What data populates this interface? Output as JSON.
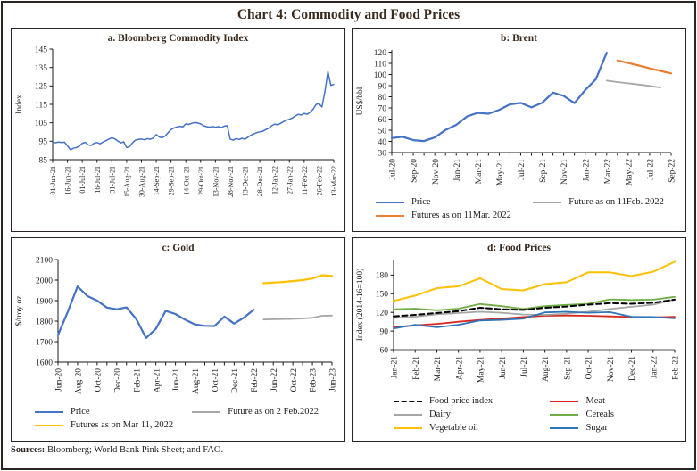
{
  "figure": {
    "title": "Chart 4: Commodity and Food Prices",
    "sources_label": "Sources:",
    "sources_text": " Bloomberg; World Bank Pink Sheet; and FAO."
  },
  "colors": {
    "price_blue": "#4472C4",
    "futures_orange": "#ED7D31",
    "futures_gray": "#A6A6A6",
    "futures_gold": "#FFC000",
    "cereals_green": "#70AD47",
    "meat_red": "#D7281F",
    "sugar_blue": "#2E75B6",
    "dashed_black": "#000000",
    "title_brown": "#3A2A1D"
  },
  "chart_data": [
    {
      "type": "line",
      "title": "a.  Bloomberg Commodity Index",
      "ylabel": "Index",
      "ylim": [
        85,
        145
      ],
      "yticks": [
        85,
        95,
        105,
        115,
        125,
        135,
        145
      ],
      "n": 96,
      "x_ticks": {
        "indices": [
          0,
          5,
          10,
          15,
          20,
          25,
          30,
          35,
          40,
          45,
          50,
          55,
          60,
          65,
          70,
          75,
          80,
          85,
          90,
          95
        ],
        "labels": [
          "01-Jun-21",
          "16-Jun-21",
          "01-Jul-21",
          "16-Jul-21",
          "31-Jul-21",
          "15-Aug-21",
          "30-Aug-21",
          "14-Sep-21",
          "29-Sep-21",
          "14-Oct-21",
          "29-Oct-21",
          "13-Nov-21",
          "28-Nov-21",
          "13-Dec-21",
          "28-Dec-21",
          "12-Jan-22",
          "27-Jan-22",
          "11-Feb-22",
          "26-Feb-22",
          "13-Mar-22"
        ]
      },
      "series": [
        {
          "color": "#4472C4",
          "width": 1.5,
          "start": 0,
          "values": [
            94.5,
            94.2,
            94.6,
            94.3,
            94.5,
            92.5,
            90.4,
            91.2,
            91.6,
            92.3,
            93.9,
            94.4,
            93.1,
            92.7,
            93.9,
            94.3,
            93.6,
            94.6,
            95.3,
            96.2,
            96.9,
            96.3,
            95.2,
            94.1,
            94.7,
            91.6,
            92.1,
            94.2,
            95.6,
            96.1,
            96.2,
            95.8,
            96.4,
            96.1,
            96.7,
            98.6,
            97.3,
            96.9,
            97.8,
            99.6,
            101.3,
            102.2,
            102.7,
            103.1,
            102.8,
            104.4,
            104.1,
            104.7,
            105.2,
            104.9,
            104.4,
            103.4,
            102.9,
            102.6,
            103.0,
            102.6,
            102.9,
            102.4,
            103.2,
            103.4,
            96.2,
            95.6,
            96.4,
            96.0,
            96.6,
            96.1,
            97.2,
            98.3,
            99.0,
            99.7,
            100.1,
            100.4,
            101.3,
            102.1,
            103.4,
            104.3,
            103.9,
            104.7,
            105.6,
            106.4,
            106.9,
            107.6,
            108.7,
            109.6,
            109.2,
            110.1,
            109.6,
            110.8,
            112.3,
            114.9,
            115.4,
            113.6,
            122.0,
            132.8,
            125.3,
            125.8
          ]
        }
      ]
    },
    {
      "type": "line",
      "title": "b: Brent",
      "ylabel": "US$/bbl",
      "ylim": [
        30,
        122
      ],
      "yticks": [
        30,
        40,
        50,
        60,
        70,
        80,
        90,
        100,
        110,
        120
      ],
      "n": 27,
      "x_ticks": {
        "indices": [
          0,
          2,
          4,
          6,
          8,
          10,
          12,
          14,
          16,
          18,
          20,
          22,
          24,
          26
        ],
        "labels": [
          "Jul-20",
          "Sep-20",
          "Nov-20",
          "Jan-21",
          "Mar-21",
          "May-21",
          "Jul-21",
          "Sep-21",
          "Nov-21",
          "Jan-22",
          "Mar-22",
          "May-22",
          "Jul-22",
          "Sep-22"
        ]
      },
      "series": [
        {
          "label": "Price",
          "color": "#4472C4",
          "width": 2.2,
          "start": 0,
          "values": [
            43.0,
            44.2,
            41.1,
            40.3,
            43.5,
            50.2,
            54.8,
            62.3,
            65.6,
            64.8,
            68.3,
            73.2,
            74.5,
            70.5,
            74.6,
            83.8,
            80.8,
            74.3,
            86.0,
            95.8,
            119.5
          ]
        },
        {
          "label": "Future as on 11Feb. 2022",
          "color": "#A6A6A6",
          "width": 1.8,
          "start": 20,
          "values": [
            94.5,
            93.2,
            92.1,
            91.0,
            89.8,
            88.3
          ]
        },
        {
          "label": "Futures as on 11Mar. 2022",
          "color": "#ED7D31",
          "width": 2.2,
          "start": 21,
          "values": [
            112.6,
            110.3,
            108.0,
            105.5,
            103.2,
            101.0
          ]
        }
      ]
    },
    {
      "type": "line",
      "title": "c: Gold",
      "ylabel": "$/troy oz",
      "ylim": [
        1600,
        2100
      ],
      "yticks": [
        1600,
        1700,
        1800,
        1900,
        2000,
        2100
      ],
      "n": 29,
      "x_ticks": {
        "indices": [
          0,
          2,
          4,
          6,
          8,
          10,
          12,
          14,
          16,
          18,
          20,
          22,
          24,
          26,
          28
        ],
        "labels": [
          "Jun-20",
          "Aug-20",
          "Oct-20",
          "Dec-20",
          "Feb-21",
          "Apr-21",
          "Jun-21",
          "Aug-21",
          "Oct-21",
          "Dec-21",
          "Feb-22",
          "Jun-22",
          "Oct-22",
          "Feb-23",
          "Jun-23"
        ]
      },
      "series": [
        {
          "label": "Price",
          "color": "#4472C4",
          "width": 2.2,
          "start": 0,
          "values": [
            1732,
            1846,
            1969,
            1922,
            1900,
            1866,
            1858,
            1867,
            1810,
            1718,
            1762,
            1850,
            1835,
            1807,
            1784,
            1777,
            1776,
            1822,
            1788,
            1817,
            1856
          ]
        },
        {
          "label": "Future as on 2 Feb.2022",
          "color": "#A6A6A6",
          "width": 1.8,
          "start": 21,
          "values": [
            1808,
            1809,
            1810,
            1811,
            1813,
            1816,
            1826,
            1827
          ]
        },
        {
          "label": "Futures as on Mar 11, 2022",
          "color": "#FFC000",
          "width": 2.2,
          "start": 21,
          "values": [
            1985,
            1988,
            1991,
            1995,
            2000,
            2008,
            2024,
            2020
          ]
        }
      ]
    },
    {
      "type": "line",
      "title": "d: Food Prices",
      "ylabel": "Index (2014-16=100)",
      "ylim": [
        60,
        205
      ],
      "yticks": [
        60,
        90,
        120,
        150,
        180
      ],
      "n": 14,
      "x_ticks": {
        "indices": [
          0,
          1,
          2,
          3,
          4,
          5,
          6,
          7,
          8,
          9,
          10,
          11,
          12,
          13
        ],
        "labels": [
          "Jan-21",
          "Feb-21",
          "Mar-21",
          "Apr-21",
          "May-21",
          "Jun-21",
          "Jul-21",
          "Aug-21",
          "Sep-21",
          "Oct-21",
          "Nov-21",
          "Dec-21",
          "Jan-22",
          "Feb-22"
        ]
      },
      "series": [
        {
          "label": "Food price index",
          "color": "#000000",
          "width": 2.0,
          "dash": true,
          "start": 0,
          "values": [
            113.5,
            116,
            119,
            122,
            127.5,
            125,
            124,
            127.5,
            129.5,
            132.5,
            135,
            134,
            135.5,
            140.5
          ]
        },
        {
          "label": "Meat",
          "color": "#D7281F",
          "width": 1.8,
          "start": 0,
          "values": [
            96,
            99,
            101.5,
            105,
            108,
            110,
            112.5,
            114.5,
            115,
            114.5,
            113.5,
            112.5,
            112,
            113
          ]
        },
        {
          "label": "Dairy",
          "color": "#A6A6A6",
          "width": 1.8,
          "start": 0,
          "values": [
            111,
            113,
            117,
            119,
            121,
            119.5,
            116.5,
            116,
            118,
            121,
            125.5,
            129,
            132.5,
            141
          ]
        },
        {
          "label": "Cereals",
          "color": "#70AD47",
          "width": 1.8,
          "start": 0,
          "values": [
            125,
            126,
            123.5,
            126,
            133.5,
            130,
            125.5,
            130,
            132,
            134,
            141,
            140,
            140.5,
            145
          ]
        },
        {
          "label": "Vegetable oil",
          "color": "#FFC000",
          "width": 2.0,
          "start": 0,
          "values": [
            138.5,
            147,
            159,
            162,
            175,
            157.5,
            155.5,
            165.5,
            168.5,
            184.5,
            184.5,
            178.5,
            185.5,
            201.5
          ]
        },
        {
          "label": "Sugar",
          "color": "#2E75B6",
          "width": 1.8,
          "start": 0,
          "values": [
            94,
            100,
            96,
            100,
            107,
            108,
            110,
            120,
            121,
            119.5,
            120.5,
            113,
            112.5,
            110.5
          ]
        }
      ]
    }
  ]
}
